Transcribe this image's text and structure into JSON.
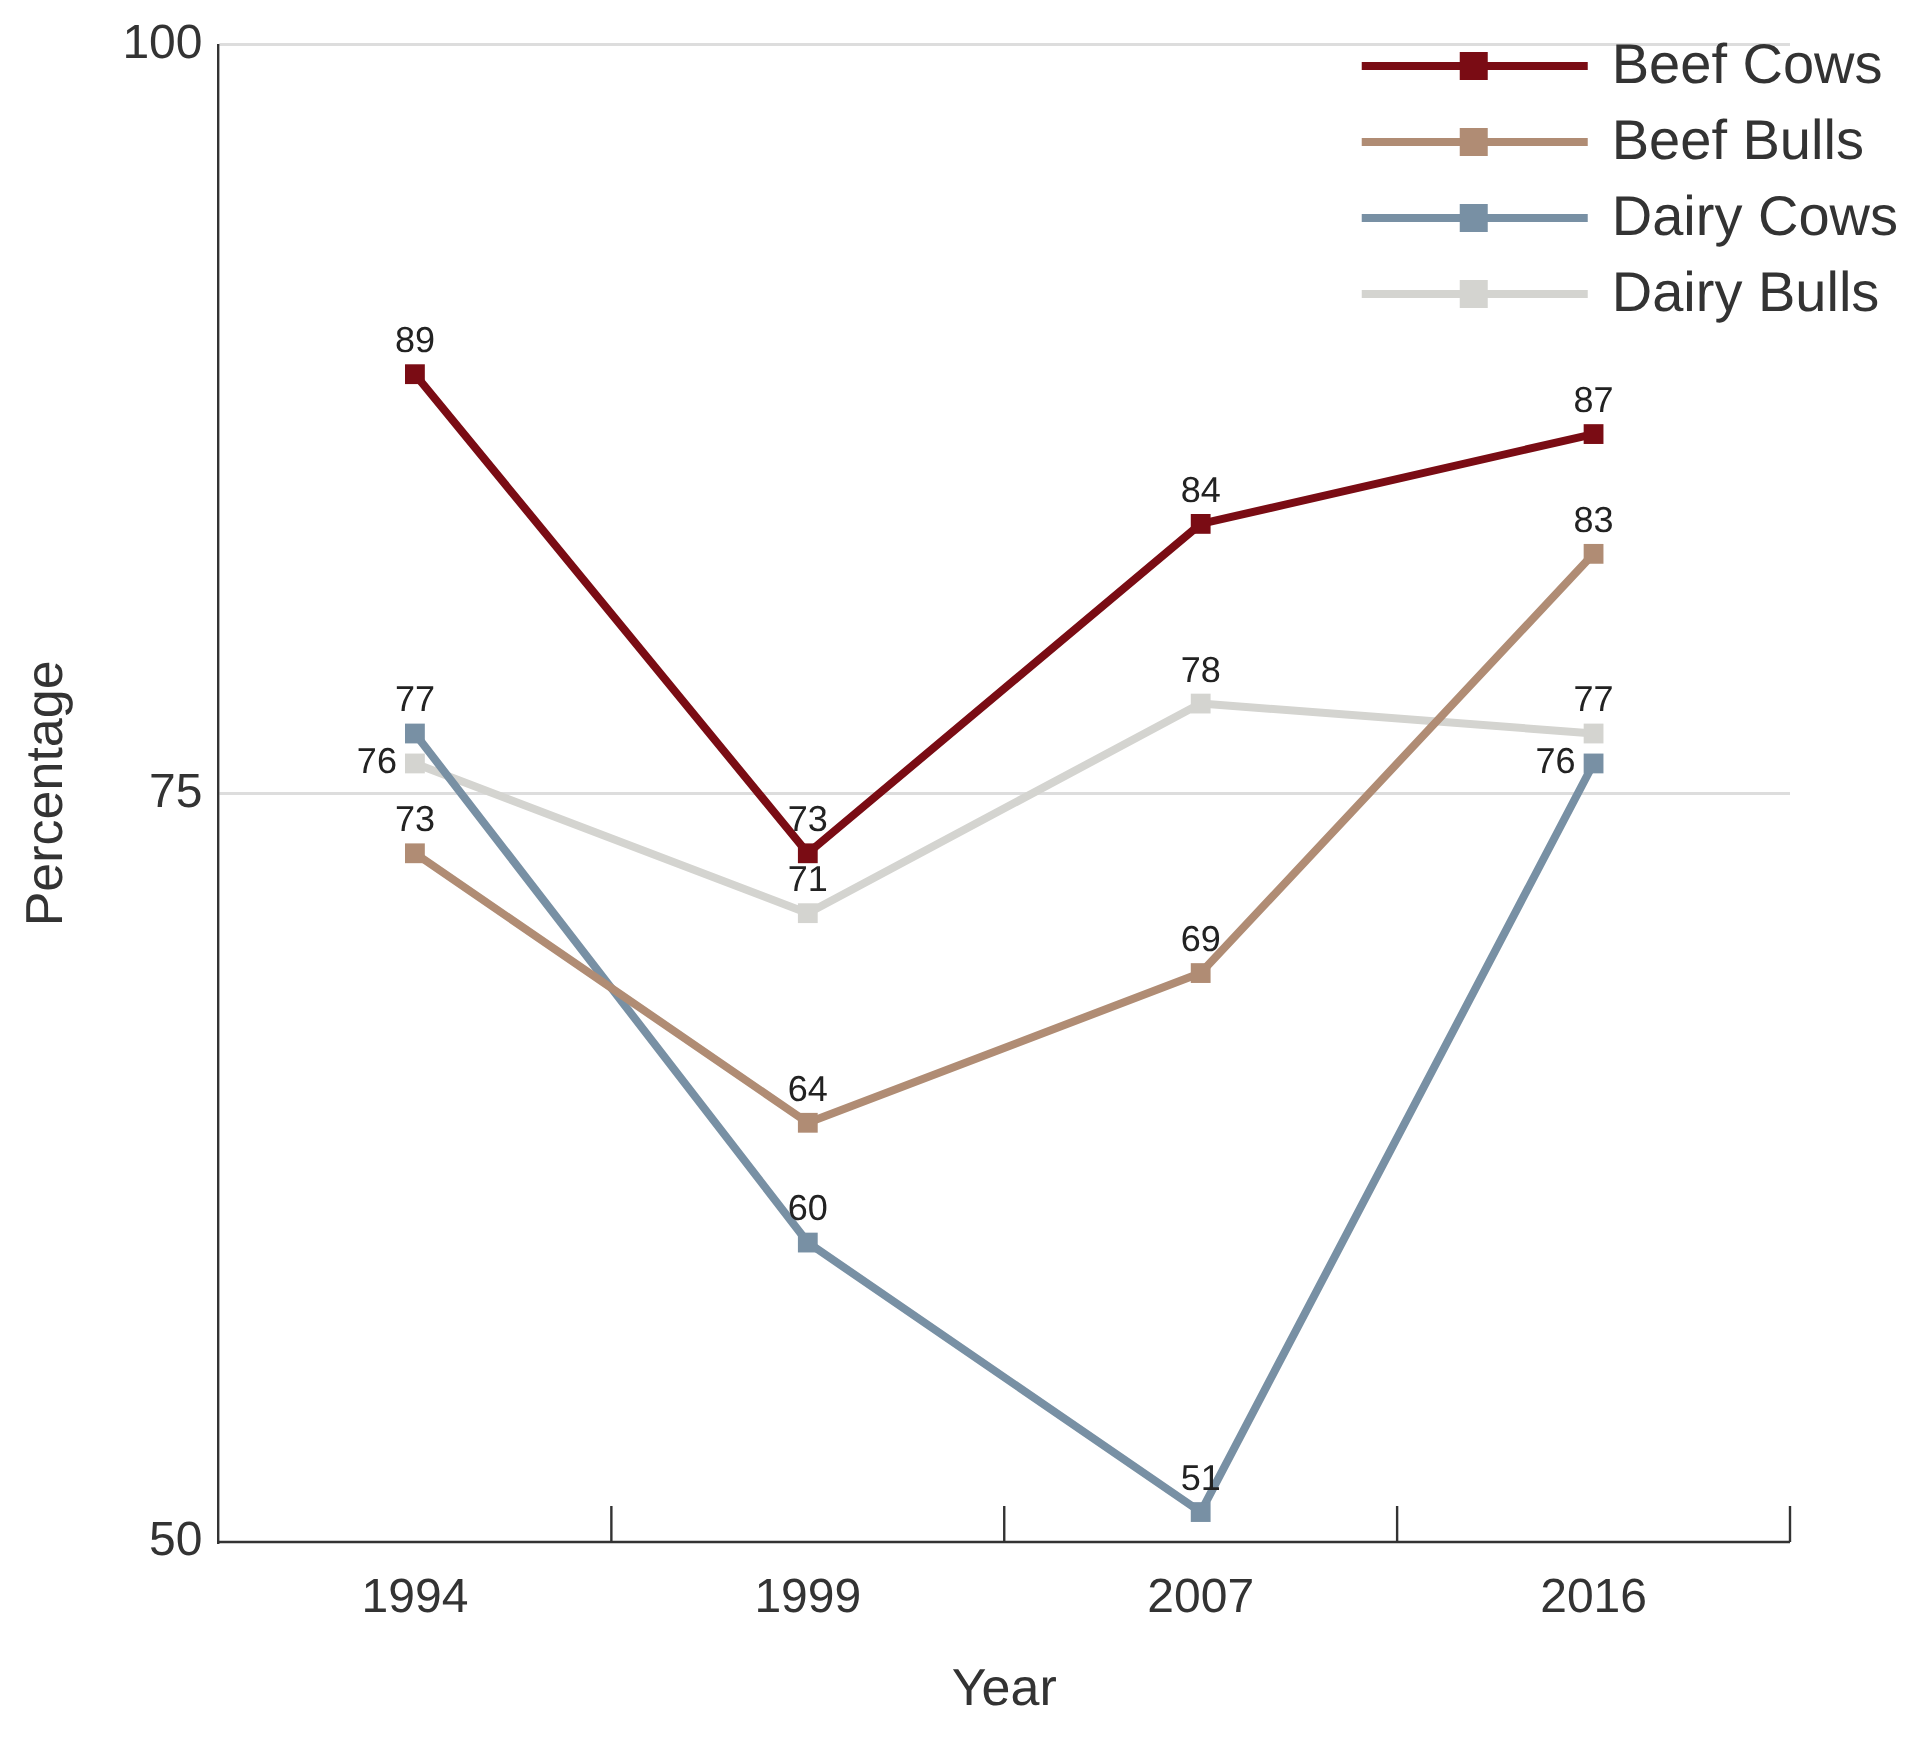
{
  "chart_data": {
    "type": "line",
    "xlabel": "Year",
    "ylabel": "Percentage",
    "categories": [
      "1994",
      "1999",
      "2007",
      "2016"
    ],
    "series": [
      {
        "name": "Beef Cows",
        "color": "#7a0c14",
        "values": [
          89,
          73,
          84,
          87
        ]
      },
      {
        "name": "Beef Bulls",
        "color": "#b08c74",
        "values": [
          73,
          64,
          69,
          83
        ]
      },
      {
        "name": "Dairy Cows",
        "color": "#7890a4",
        "values": [
          77,
          60,
          51,
          76
        ]
      },
      {
        "name": "Dairy Bulls",
        "color": "#d4d4d0",
        "values": [
          76,
          71,
          78,
          77
        ]
      }
    ],
    "ylim": [
      50,
      100
    ],
    "yticks": [
      50,
      75,
      100
    ],
    "grid": "y",
    "legend": "top right",
    "marker": "square",
    "line_style": "solid",
    "data_labels": true
  }
}
